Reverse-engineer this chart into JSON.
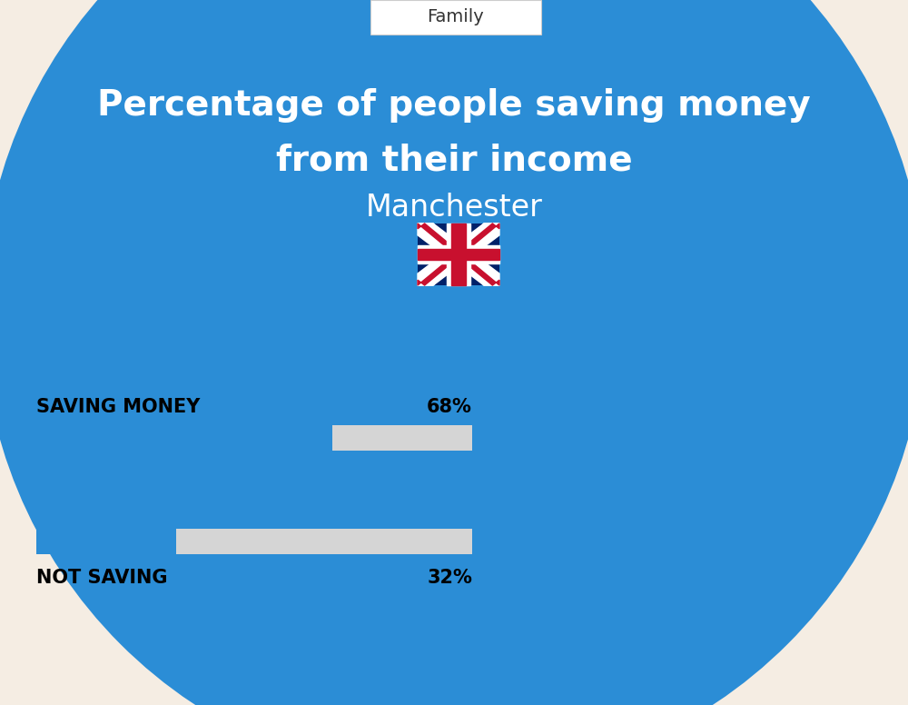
{
  "title_line1": "Percentage of people saving money",
  "title_line2": "from their income",
  "subtitle": "Manchester",
  "category_label": "Family",
  "bg_color": "#F5EDE3",
  "header_blue": "#2B8DD6",
  "bar1_label": "SAVING MONEY",
  "bar1_value": 68,
  "bar1_pct": "68%",
  "bar2_label": "NOT SAVING",
  "bar2_value": 32,
  "bar2_pct": "32%",
  "bar_blue": "#2B8DD6",
  "bar_gray": "#D5D5D5",
  "text_color": "#000000",
  "white_color": "#FFFFFF",
  "fig_width": 10.0,
  "fig_height": 7.76,
  "dpi": 100
}
